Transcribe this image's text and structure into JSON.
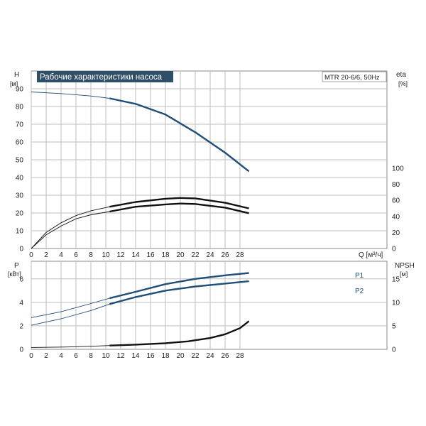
{
  "colors": {
    "blue": "#1f4e79",
    "black": "#111111",
    "title_bg": "#2f4f67",
    "title_fg": "#ffffff"
  },
  "chart_data": {
    "type": "line",
    "title": "Рабочие характеристики насоса",
    "model": "MTR 20-6/6, 50Hz",
    "grid": true,
    "x_axis": {
      "label": "Q [м³/ч]",
      "range": [
        0,
        30
      ],
      "ticks": [
        "0",
        "2",
        "4",
        "6",
        "8",
        "10",
        "12",
        "14",
        "16",
        "18",
        "20",
        "22",
        "24",
        "26",
        "28"
      ]
    },
    "top_panel": {
      "left_axis": {
        "label": "H",
        "unit": "[м]",
        "range": [
          0,
          100
        ],
        "ticks": [
          "0",
          "10",
          "20",
          "30",
          "40",
          "50",
          "60",
          "70",
          "80",
          "90"
        ]
      },
      "right_axis": {
        "label": "eta",
        "unit": "[%]",
        "range": [
          0,
          100
        ],
        "ticks": [
          "0",
          "20",
          "40",
          "60",
          "80",
          "100"
        ]
      },
      "series": [
        {
          "key": "h",
          "axis": "left",
          "color_key": "blue",
          "bold_from": 10.5,
          "points": [
            [
              0,
              88.2
            ],
            [
              4,
              87.3
            ],
            [
              8,
              85.9
            ],
            [
              10.5,
              84.6
            ],
            [
              14,
              81.5
            ],
            [
              18,
              75.5
            ],
            [
              22,
              65.5
            ],
            [
              26,
              54
            ],
            [
              29.2,
              43.5
            ]
          ]
        },
        {
          "key": "eta_upper",
          "axis": "right",
          "color_key": "black",
          "bold_from": 10.5,
          "points": [
            [
              0,
              0
            ],
            [
              2,
              20
            ],
            [
              4,
              32
            ],
            [
              6,
              41
            ],
            [
              8,
              47
            ],
            [
              10.5,
              52
            ],
            [
              14,
              58
            ],
            [
              18,
              62
            ],
            [
              20,
              63
            ],
            [
              22,
              62.5
            ],
            [
              26,
              57
            ],
            [
              29.2,
              50
            ]
          ]
        },
        {
          "key": "eta_lower",
          "axis": "right",
          "color_key": "black",
          "bold_from": 10.5,
          "points": [
            [
              0,
              0
            ],
            [
              2,
              17
            ],
            [
              4,
              28
            ],
            [
              6,
              37
            ],
            [
              8,
              42
            ],
            [
              10.5,
              46
            ],
            [
              14,
              52
            ],
            [
              18,
              55
            ],
            [
              20,
              56
            ],
            [
              22,
              55.5
            ],
            [
              26,
              51
            ],
            [
              29.2,
              44
            ]
          ]
        }
      ]
    },
    "bottom_panel": {
      "left_axis": {
        "label": "P",
        "unit": "[кВт]",
        "range": [
          0,
          7.5
        ],
        "ticks": [
          "0",
          "2",
          "4",
          "6"
        ]
      },
      "right_axis": {
        "label": "NPSH",
        "unit": "[м]",
        "range": [
          0,
          18.75
        ],
        "ticks": [
          "0",
          "5",
          "10",
          "15"
        ]
      },
      "series": [
        {
          "key": "p1",
          "name": "P1",
          "axis": "left",
          "color_key": "blue",
          "bold_from": 10.5,
          "points": [
            [
              0,
              2.7
            ],
            [
              4,
              3.2
            ],
            [
              8,
              3.9
            ],
            [
              10.5,
              4.35
            ],
            [
              14,
              4.9
            ],
            [
              18,
              5.55
            ],
            [
              22,
              6.0
            ],
            [
              26,
              6.3
            ],
            [
              29.2,
              6.5
            ]
          ]
        },
        {
          "key": "p2",
          "name": "P2",
          "axis": "left",
          "color_key": "blue",
          "bold_from": 10.5,
          "points": [
            [
              0,
              2.05
            ],
            [
              4,
              2.6
            ],
            [
              8,
              3.3
            ],
            [
              10.5,
              3.85
            ],
            [
              14,
              4.45
            ],
            [
              18,
              5.0
            ],
            [
              22,
              5.35
            ],
            [
              26,
              5.6
            ],
            [
              29.2,
              5.8
            ]
          ]
        },
        {
          "key": "npsh",
          "axis": "right",
          "color_key": "black",
          "bold_from": 10.5,
          "points": [
            [
              0,
              0.4
            ],
            [
              5,
              0.5
            ],
            [
              10.5,
              0.8
            ],
            [
              14,
              1.0
            ],
            [
              18,
              1.3
            ],
            [
              21,
              1.7
            ],
            [
              24,
              2.4
            ],
            [
              26,
              3.2
            ],
            [
              28,
              4.5
            ],
            [
              29.2,
              6.0
            ]
          ]
        }
      ]
    }
  }
}
